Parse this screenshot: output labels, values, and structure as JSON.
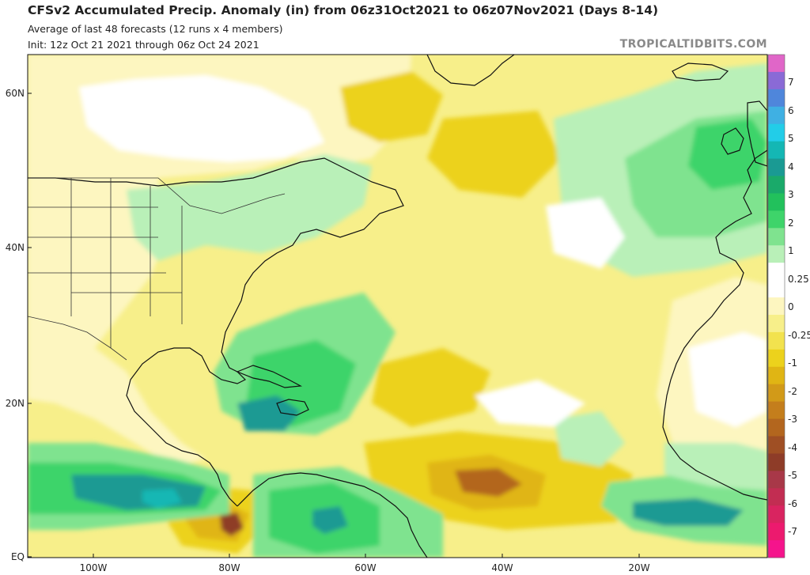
{
  "header": {
    "title": "CFSv2 Accumulated Precip. Anomaly (in) from 06z31Oct2021 to 06z07Nov2021 (Days 8-14)",
    "subtitle1": "Average of last 48 forecasts (12 runs x 4 members)",
    "subtitle2": "Init: 12z Oct 21 2021 through 06z Oct 24 2021",
    "credit": "TROPICALTIDBITS.COM"
  },
  "axes": {
    "lat_labels": [
      "60N",
      "40N",
      "20N",
      "EQ"
    ],
    "lon_labels": [
      "100W",
      "80W",
      "60W",
      "40W",
      "20W"
    ]
  },
  "colorbar": {
    "labels": [
      "7",
      "6",
      "5",
      "4",
      "3",
      "2",
      "1",
      "0.25",
      "0",
      "-0.25",
      "-1",
      "-2",
      "-3",
      "-4",
      "-5",
      "-6",
      "-7"
    ],
    "colors": [
      "#e066c8",
      "#8a6ad6",
      "#4f86db",
      "#3fb0e3",
      "#22cde8",
      "#14b7b4",
      "#1a9a93",
      "#1aaa6a",
      "#22c15c",
      "#3ed46a",
      "#7fe38f",
      "#b9f0b8",
      "#ffffff",
      "#ffffff",
      "#fdf6c0",
      "#f7ef8a",
      "#f2e24e",
      "#ecd21c",
      "#e0b514",
      "#d29a18",
      "#c47e1c",
      "#b3661e",
      "#9f4f24",
      "#8e3c28",
      "#a83848",
      "#c22d52",
      "#d92460",
      "#ec1a6e",
      "#f5148c"
    ]
  },
  "map": {
    "ocean_base": "#f7ef8a",
    "land_base": "#fdf6c0",
    "colors": {
      "light_yellow": "#fdf6c0",
      "yellow": "#f2e24e",
      "gold": "#ecd21c",
      "orange": "#e0b514",
      "brown": "#b3661e",
      "dark_brown": "#8e3c28",
      "very_light_green": "#d7f5d2",
      "light_green": "#b9f0b8",
      "green": "#7fe38f",
      "mid_green": "#3ed46a",
      "bright_green": "#22c15c",
      "teal": "#1a9a93",
      "cyan_teal": "#14b7b4",
      "blue": "#4f86db",
      "white": "#ffffff",
      "border": "#111111",
      "state_border": "#333333"
    }
  }
}
